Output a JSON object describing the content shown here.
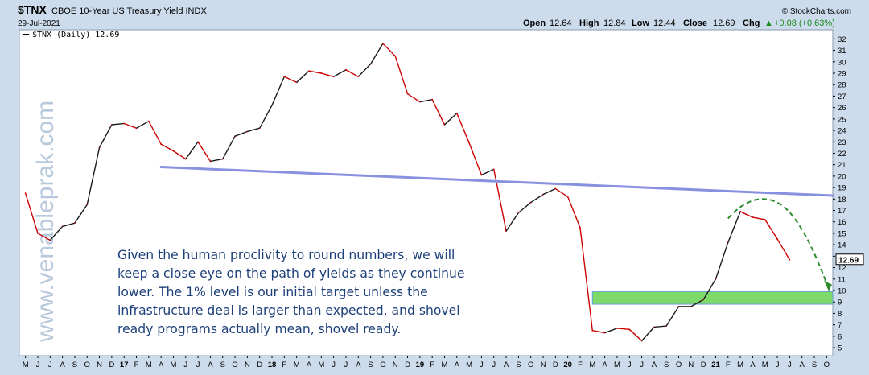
{
  "header": {
    "symbol": "$TNX",
    "name": "CBOE 10-Year US Treasury Yield INDX",
    "date": "29-Jul-2021",
    "source": "© StockCharts.com",
    "open_label": "Open",
    "open": "12.64",
    "high_label": "High",
    "high": "12.84",
    "low_label": "Low",
    "low": "12.44",
    "close_label": "Close",
    "close": "12.69",
    "chg_label": "Chg",
    "chg": "+0.08 (+0.63%)",
    "chg_arrow": "▲"
  },
  "legend": "$TNX (Daily) 12.69",
  "watermark": "www.venableprak.com",
  "annotation": [
    "Given the human proclivity to round numbers, we will",
    "keep a close eye on the path of yields as they continue",
    "lower. The 1% level is our initial target unless the",
    "infrastructure deal is larger than expected, and shovel",
    "ready programs actually mean, shovel ready."
  ],
  "last_value_label": "12.69",
  "colors": {
    "price_up": "#1a1a1a",
    "price_down": "#cc0000",
    "trendline": "#8890e0",
    "support_zone": "#7fd86a",
    "arrow": "#2e8b2e",
    "annotation_text": "#1c3f7a"
  },
  "chart_data": {
    "type": "line",
    "title": "$TNX CBOE 10-Year US Treasury Yield INDX",
    "series": [
      {
        "name": "$TNX (Daily)",
        "x": [
          "2016-05",
          "2016-06",
          "2016-07",
          "2016-08",
          "2016-09",
          "2016-10",
          "2016-11",
          "2016-12",
          "2017-01",
          "2017-02",
          "2017-03",
          "2017-04",
          "2017-05",
          "2017-06",
          "2017-07",
          "2017-08",
          "2017-09",
          "2017-10",
          "2017-11",
          "2017-12",
          "2018-01",
          "2018-02",
          "2018-03",
          "2018-04",
          "2018-05",
          "2018-06",
          "2018-07",
          "2018-08",
          "2018-09",
          "2018-10",
          "2018-11",
          "2018-12",
          "2019-01",
          "2019-02",
          "2019-03",
          "2019-04",
          "2019-05",
          "2019-06",
          "2019-07",
          "2019-08",
          "2019-09",
          "2019-10",
          "2019-11",
          "2019-12",
          "2020-01",
          "2020-02",
          "2020-03",
          "2020-04",
          "2020-05",
          "2020-06",
          "2020-07",
          "2020-08",
          "2020-09",
          "2020-10",
          "2020-11",
          "2020-12",
          "2021-01",
          "2021-02",
          "2021-03",
          "2021-04",
          "2021-05",
          "2021-06",
          "2021-07"
        ],
        "values": [
          18.5,
          15.0,
          14.4,
          15.6,
          15.9,
          17.5,
          22.5,
          24.5,
          24.6,
          24.2,
          24.8,
          22.8,
          22.2,
          21.5,
          23.0,
          21.3,
          21.5,
          23.5,
          23.9,
          24.2,
          26.2,
          28.7,
          28.2,
          29.2,
          29.0,
          28.7,
          29.3,
          28.7,
          29.8,
          31.6,
          30.5,
          27.2,
          26.5,
          26.7,
          24.5,
          25.5,
          22.9,
          20.1,
          20.6,
          15.2,
          16.8,
          17.7,
          18.4,
          18.9,
          18.2,
          15.5,
          6.5,
          6.3,
          6.7,
          6.6,
          5.6,
          6.8,
          6.9,
          8.6,
          8.6,
          9.2,
          11.0,
          14.2,
          16.9,
          16.4,
          16.2,
          14.5,
          12.69
        ]
      }
    ],
    "x_ticks": [
      "M",
      "J",
      "J",
      "A",
      "S",
      "O",
      "N",
      "D",
      "17",
      "F",
      "M",
      "A",
      "M",
      "J",
      "J",
      "A",
      "S",
      "O",
      "N",
      "D",
      "18",
      "F",
      "M",
      "A",
      "M",
      "J",
      "J",
      "A",
      "S",
      "O",
      "N",
      "D",
      "19",
      "F",
      "M",
      "A",
      "M",
      "J",
      "J",
      "A",
      "S",
      "O",
      "N",
      "D",
      "20",
      "F",
      "M",
      "A",
      "M",
      "J",
      "J",
      "A",
      "S",
      "O",
      "N",
      "D",
      "21",
      "F",
      "M",
      "A",
      "M",
      "J",
      "J",
      "A",
      "S",
      "O"
    ],
    "y_ticks": [
      5,
      6,
      7,
      8,
      9,
      10,
      11,
      12,
      13,
      14,
      15,
      16,
      17,
      18,
      19,
      20,
      21,
      22,
      23,
      24,
      25,
      26,
      27,
      28,
      29,
      30,
      31,
      32
    ],
    "ylim": [
      4.3,
      32.8
    ],
    "y_axis_side": "right",
    "grid": false,
    "trendline": {
      "start": [
        "2017-04",
        20.8
      ],
      "end": [
        "2021-10",
        18.3
      ]
    },
    "support_zone": {
      "from": [
        "2020-03",
        8.8
      ],
      "to": [
        "2021-10",
        9.9
      ]
    },
    "arrow_projection": {
      "from": [
        "2021-02",
        16.3
      ],
      "peak": [
        "2021-04",
        18.0
      ],
      "to": [
        "2021-10",
        10.3
      ]
    }
  }
}
